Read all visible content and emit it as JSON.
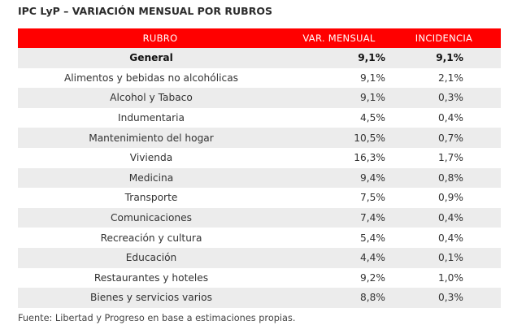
{
  "title": "IPC LyP – VARIACIÓN MENSUAL POR RUBROS",
  "header": {
    "rubro": "RUBRO",
    "var_mensual": "VAR. MENSUAL",
    "incidencia": "INCIDENCIA"
  },
  "rows": [
    {
      "rubro": "General",
      "var": "9,1%",
      "inc": "9,1%"
    },
    {
      "rubro": "Alimentos y bebidas no alcohólicas",
      "var": "9,1%",
      "inc": "2,1%"
    },
    {
      "rubro": "Alcohol y Tabaco",
      "var": "9,1%",
      "inc": "0,3%"
    },
    {
      "rubro": "Indumentaria",
      "var": "4,5%",
      "inc": "0,4%"
    },
    {
      "rubro": "Mantenimiento del hogar",
      "var": "10,5%",
      "inc": "0,7%"
    },
    {
      "rubro": "Vivienda",
      "var": "16,3%",
      "inc": "1,7%"
    },
    {
      "rubro": "Medicina",
      "var": "9,4%",
      "inc": "0,8%"
    },
    {
      "rubro": "Transporte",
      "var": "7,5%",
      "inc": "0,9%"
    },
    {
      "rubro": "Comunicaciones",
      "var": "7,4%",
      "inc": "0,4%"
    },
    {
      "rubro": "Recreación y cultura",
      "var": "5,4%",
      "inc": "0,4%"
    },
    {
      "rubro": "Educación",
      "var": "4,4%",
      "inc": "0,1%"
    },
    {
      "rubro": "Restaurantes y hoteles",
      "var": "9,2%",
      "inc": "1,0%"
    },
    {
      "rubro": "Bienes y servicios varios",
      "var": "8,8%",
      "inc": "0,3%"
    }
  ],
  "source": "Fuente: Libertad y Progreso en base a estimaciones propias.",
  "colors": {
    "header_bg": "#ff0000",
    "stripe": "#ececec"
  }
}
